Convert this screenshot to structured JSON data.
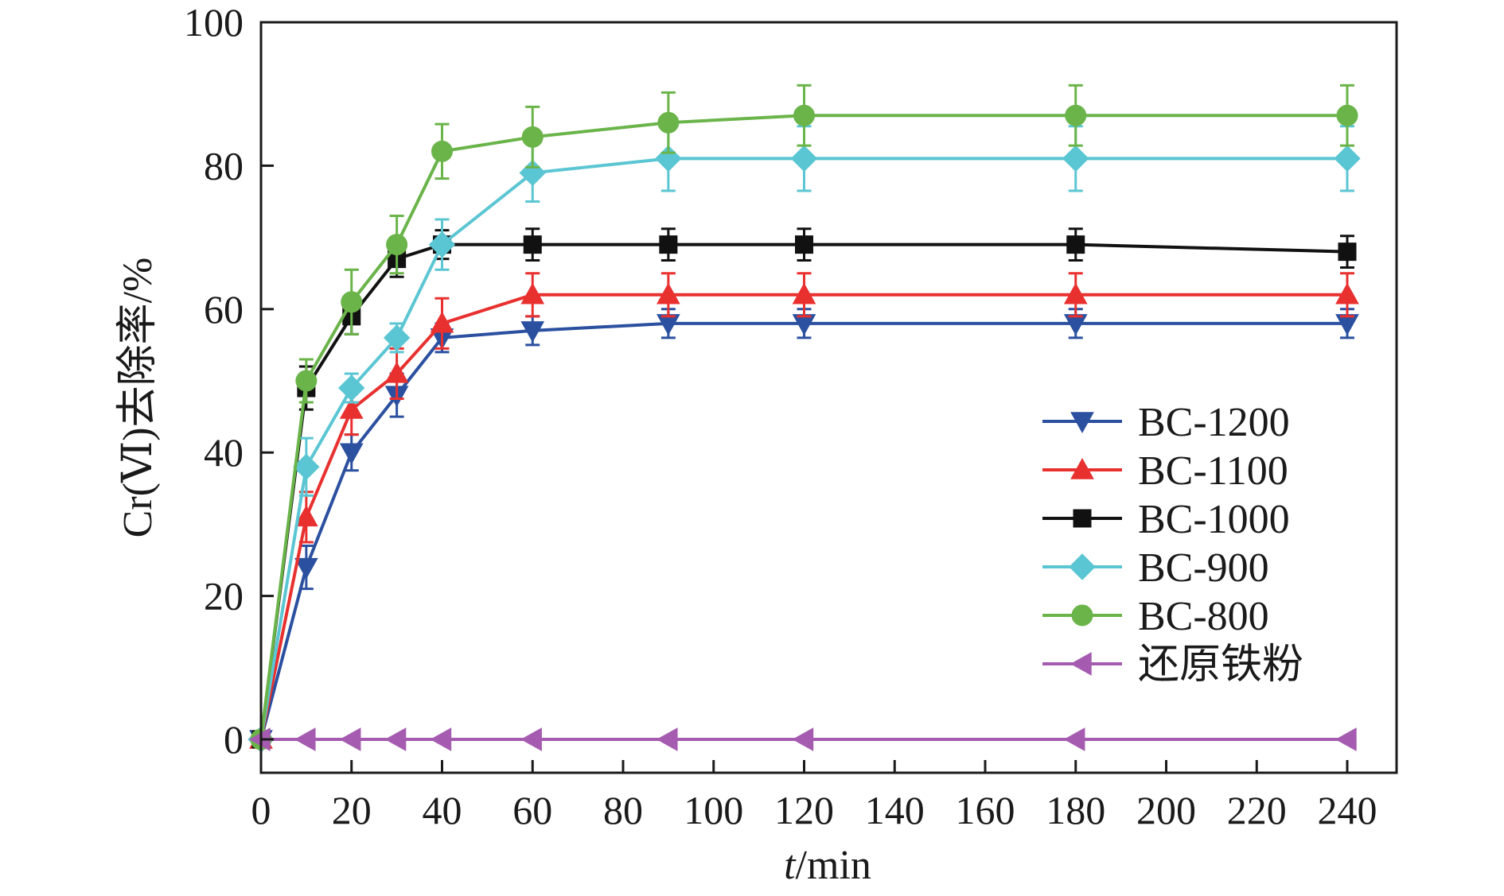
{
  "chart_data": {
    "type": "line",
    "title": "",
    "xlabel": {
      "italic": "t",
      "rest": "/min"
    },
    "ylabel": "Cr(Ⅵ)去除率/%",
    "xlim": [
      0,
      250
    ],
    "ylim": [
      0,
      100
    ],
    "xticks": [
      0,
      20,
      40,
      60,
      80,
      100,
      120,
      140,
      160,
      180,
      200,
      220,
      240
    ],
    "yticks": [
      0,
      20,
      40,
      60,
      80,
      100
    ],
    "grid": false,
    "legend_position": "right",
    "x": [
      0,
      10,
      20,
      30,
      40,
      60,
      90,
      120,
      180,
      240
    ],
    "series": [
      {
        "name": "BC-1200",
        "color": "#2b50a0",
        "marker": "triangle-down",
        "values": [
          0,
          24,
          40,
          48,
          56,
          57,
          58,
          58,
          58,
          58
        ],
        "errors": [
          0,
          3,
          2.5,
          3,
          2,
          2,
          2,
          2,
          2,
          2
        ]
      },
      {
        "name": "BC-1100",
        "color": "#e8302f",
        "marker": "triangle-up",
        "values": [
          0,
          31,
          46,
          51,
          58,
          62,
          62,
          62,
          62,
          62
        ],
        "errors": [
          0,
          3.5,
          3.5,
          3.5,
          3.5,
          3,
          3,
          3,
          3,
          3
        ]
      },
      {
        "name": "BC-1000",
        "color": "#111111",
        "marker": "square",
        "values": [
          0,
          49,
          59,
          67,
          69,
          69,
          69,
          69,
          69,
          68
        ],
        "errors": [
          0,
          3,
          2.5,
          2.5,
          2,
          2.2,
          2.2,
          2.2,
          2.2,
          2.2
        ]
      },
      {
        "name": "BC-900",
        "color": "#5bc6d3",
        "marker": "diamond",
        "values": [
          0,
          38,
          49,
          56,
          69,
          79,
          81,
          81,
          81,
          81
        ],
        "errors": [
          0,
          4,
          2,
          2,
          3.5,
          4,
          4.5,
          4.5,
          4.5,
          4.5
        ]
      },
      {
        "name": "BC-800",
        "color": "#6ab44a",
        "marker": "circle",
        "values": [
          0,
          50,
          61,
          69,
          82,
          84,
          86,
          87,
          87,
          87
        ],
        "errors": [
          0,
          3,
          4.5,
          4,
          3.8,
          4.2,
          4.2,
          4.2,
          4.2,
          4.2
        ]
      },
      {
        "name": "还原铁粉",
        "color": "#a55cb0",
        "marker": "triangle-left",
        "values": [
          0,
          0,
          0,
          0,
          0,
          0,
          0,
          0,
          0,
          0
        ],
        "errors": [
          0,
          0,
          0,
          0,
          0,
          0,
          0,
          0,
          0,
          0
        ]
      }
    ]
  }
}
